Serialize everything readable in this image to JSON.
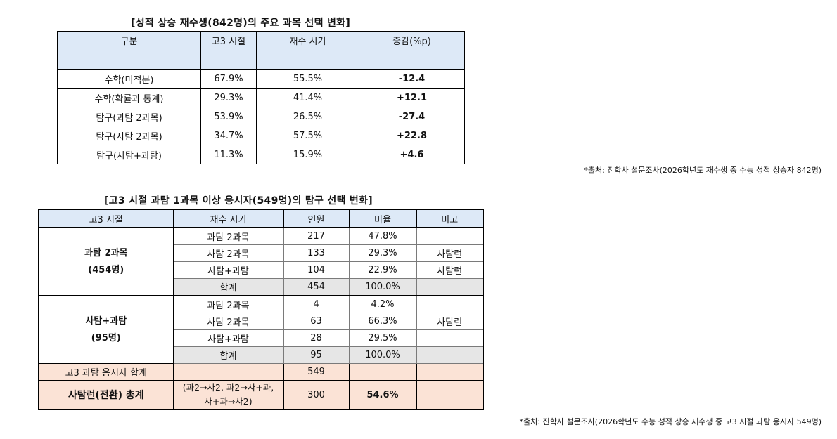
{
  "table1": {
    "title": "[성적 상승 재수생(842명)의 주요 과목 선택 변화]",
    "headers": [
      "구분",
      "고3 시절",
      "재수 시기",
      "증감(%p)"
    ],
    "rows": [
      [
        "수학(미적분)",
        "67.9%",
        "55.5%",
        "-12.4"
      ],
      [
        "수학(확률과 통계)",
        "29.3%",
        "41.4%",
        "+12.1"
      ],
      [
        "탐구(과탐 2과목)",
        "53.9%",
        "26.5%",
        "-27.4"
      ],
      [
        "탐구(사탐 2과목)",
        "34.7%",
        "57.5%",
        "+22.8"
      ],
      [
        "탐구(사탐+과탐)",
        "11.3%",
        "15.9%",
        "+4.6"
      ]
    ],
    "source": "*출처: 진학사 설문조사(2026학년도 재수생 중 수능 성적 상승자 842명)"
  },
  "table2": {
    "title": "[고3 시절 과탐 1과목 이상 응시자(549명)의 탐구 선택 변화]",
    "headers": [
      "고3 시절",
      "재수 시기",
      "인원",
      "비율",
      "비고"
    ],
    "groups": [
      {
        "label_line1": "과탐 2과목",
        "label_line2": "(454명)",
        "rows": [
          [
            "과탐 2과목",
            "217",
            "47.8%",
            ""
          ],
          [
            "사탐 2과목",
            "133",
            "29.3%",
            "사탐런"
          ],
          [
            "사탐+과탐",
            "104",
            "22.9%",
            "사탐런"
          ]
        ],
        "subtotal": [
          "합계",
          "454",
          "100.0%",
          ""
        ]
      },
      {
        "label_line1": "사탐+과탐",
        "label_line2": "(95명)",
        "rows": [
          [
            "과탐 2과목",
            "4",
            "4.2%",
            ""
          ],
          [
            "사탐 2과목",
            "63",
            "66.3%",
            "사탐런"
          ],
          [
            "사탐+과탐",
            "28",
            "29.5%",
            ""
          ]
        ],
        "subtotal": [
          "합계",
          "95",
          "100.0%",
          ""
        ]
      }
    ],
    "total": {
      "label": "고3 과탐 응시자 합계",
      "count": "549"
    },
    "switch_total": {
      "label": "사탐런(전환) 총계",
      "desc_line1": "(과2→사2, 과2→사+과,",
      "desc_line2": "사+과→사2)",
      "count": "300",
      "ratio": "54.6%"
    },
    "source": "*출처: 진학사 설문조사(2026학년도 수능 성적 상승 재수생 중 고3 시절 과탐 응시자 549명)"
  }
}
